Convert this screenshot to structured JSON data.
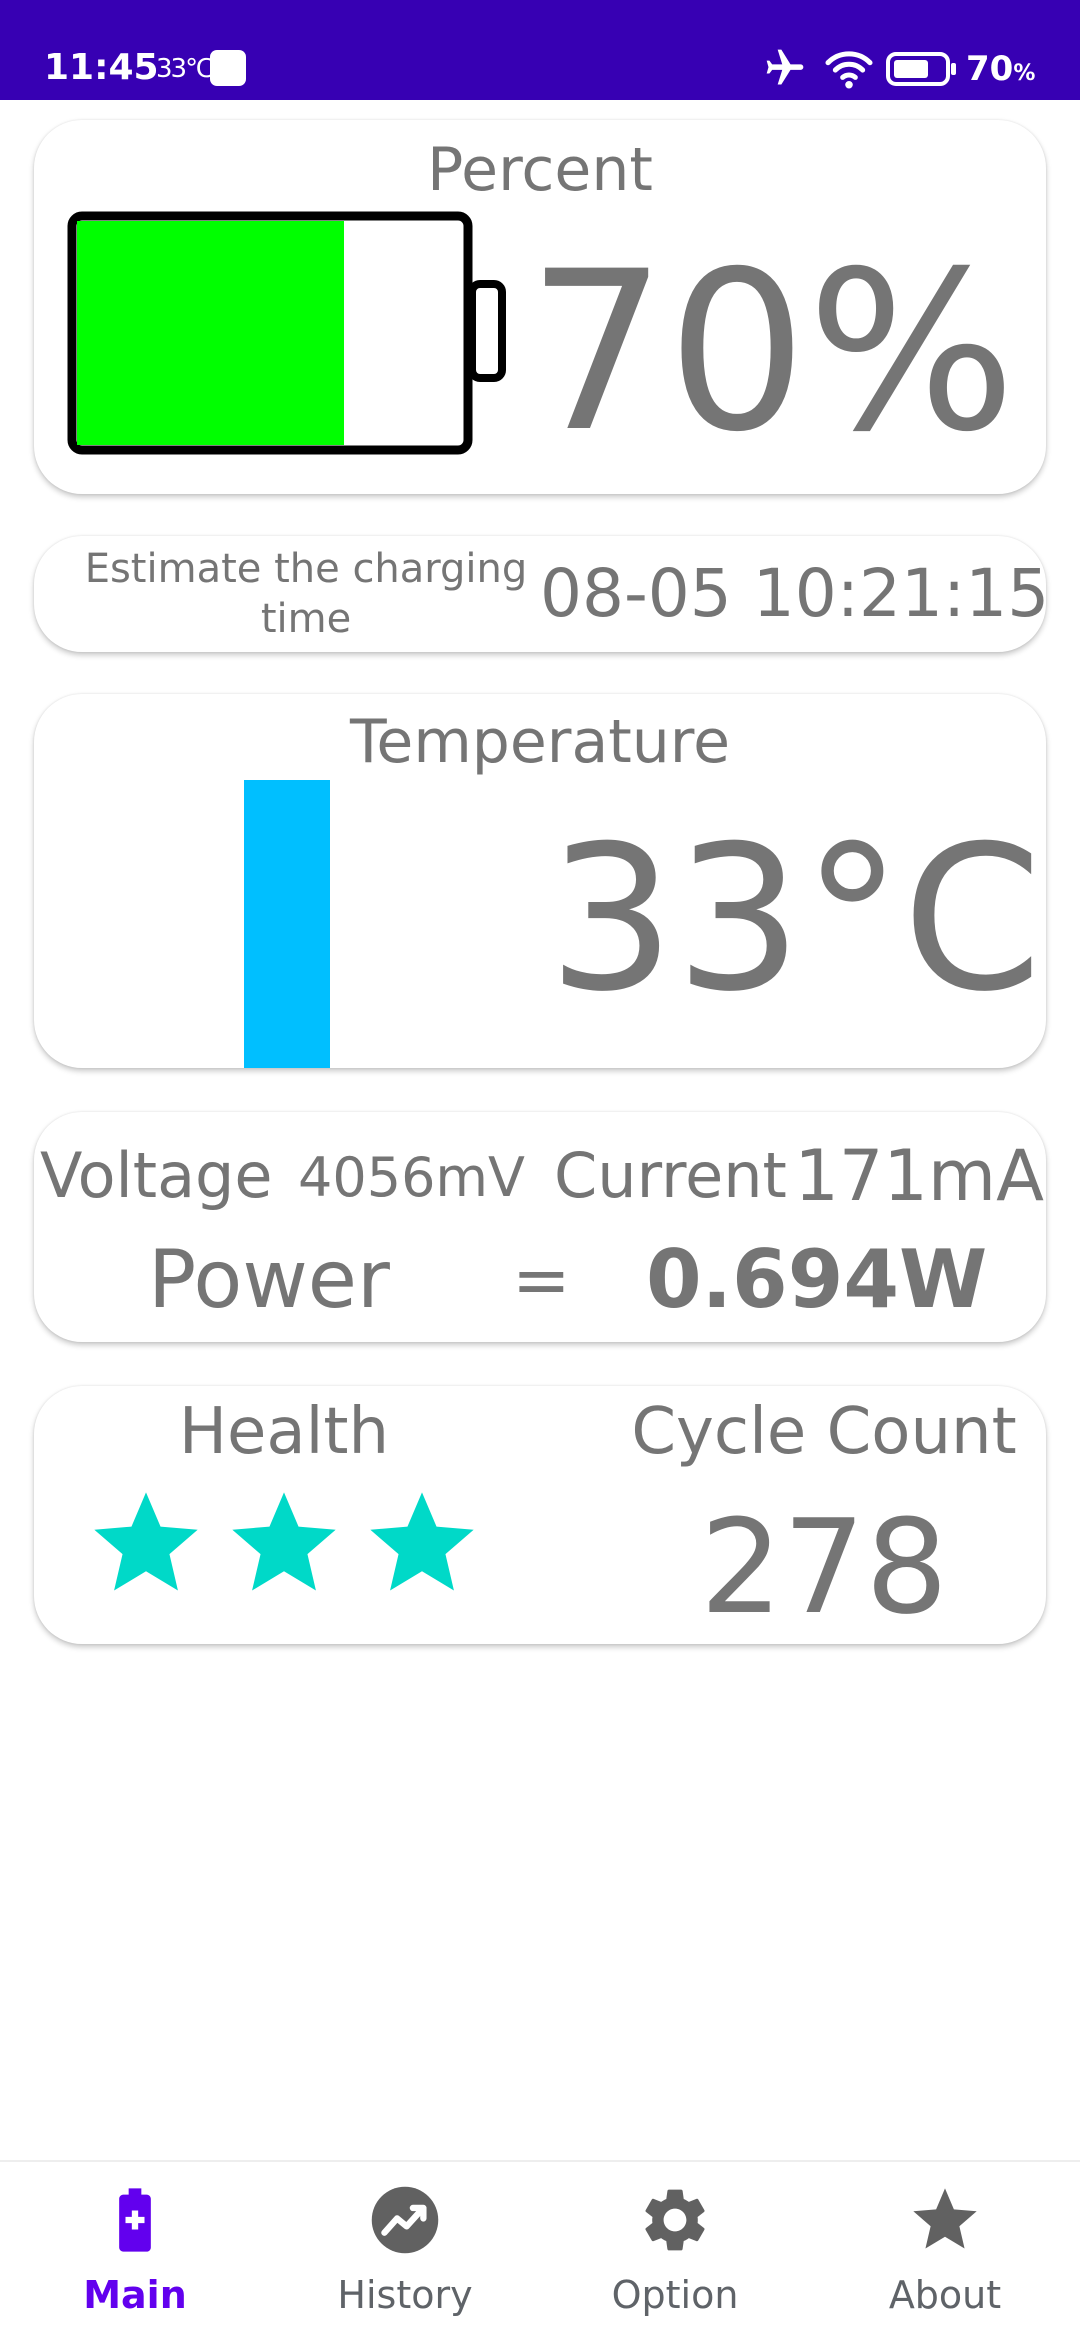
{
  "status_bar": {
    "time": "11:45",
    "temperature": "33℃",
    "battery_percent": "70",
    "battery_percent_unit": "%",
    "icons": [
      "notification-square-icon",
      "airplane-icon",
      "wifi-icon",
      "battery-icon"
    ],
    "background": "#3700b3"
  },
  "percent_card": {
    "title": "Percent",
    "value": "70%",
    "level": 0.7,
    "fill_color": "#00ff00"
  },
  "estimate_card": {
    "label": "Estimate the charging time",
    "value": "08-05 10:21:15"
  },
  "temperature_card": {
    "title": "Temperature",
    "value": "33°C",
    "bar_color": "#00bfff"
  },
  "power_card": {
    "voltage_label": "Voltage",
    "voltage_value": "4056mV",
    "current_label": "Current",
    "current_value": "171mA",
    "power_label": "Power",
    "equals": "=",
    "power_value": "0.694W"
  },
  "health_card": {
    "health_title": "Health",
    "stars": 3,
    "star_color": "#00d9c8",
    "cycle_title": "Cycle Count",
    "cycle_value": "278"
  },
  "bottom_nav": {
    "active": "Main",
    "accent": "#6200ee",
    "items": [
      {
        "label": "Main",
        "icon": "battery-plus-icon"
      },
      {
        "label": "History",
        "icon": "trending-chart-icon"
      },
      {
        "label": "Option",
        "icon": "gear-icon"
      },
      {
        "label": "About",
        "icon": "star-icon"
      }
    ]
  }
}
